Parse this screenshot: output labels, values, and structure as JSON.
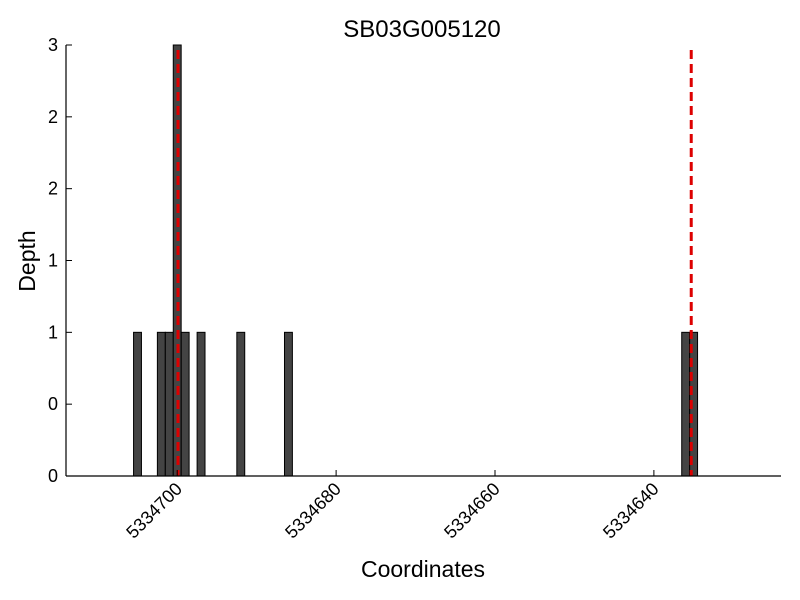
{
  "chart_data": {
    "type": "bar",
    "title": "SB03G005120",
    "xlabel": "Coordinates",
    "ylabel": "Depth",
    "x_reversed": true,
    "xlim": [
      5334714,
      5334624
    ],
    "ylim": [
      0,
      3
    ],
    "y_tick_values": [
      0,
      0.5,
      1,
      1.5,
      2,
      2.5,
      3
    ],
    "y_tick_labels": [
      "0",
      "0",
      "1",
      "1",
      "2",
      "2",
      "3"
    ],
    "x_ticks": [
      5334700,
      5334680,
      5334660,
      5334640
    ],
    "x_tick_labels": [
      "5334700",
      "5334680",
      "5334660",
      "5334640"
    ],
    "bar_color": "#444444",
    "marker_color": "#dd0000",
    "bars": [
      {
        "x": 5334705,
        "value": 1
      },
      {
        "x": 5334702,
        "value": 1
      },
      {
        "x": 5334701,
        "value": 1
      },
      {
        "x": 5334700,
        "value": 3
      },
      {
        "x": 5334699,
        "value": 1
      },
      {
        "x": 5334697,
        "value": 1
      },
      {
        "x": 5334692,
        "value": 1
      },
      {
        "x": 5334686,
        "value": 1
      },
      {
        "x": 5334636,
        "value": 1
      },
      {
        "x": 5334635,
        "value": 1
      }
    ],
    "markers": [
      5334699.9,
      5334635.3
    ],
    "grid": false
  }
}
